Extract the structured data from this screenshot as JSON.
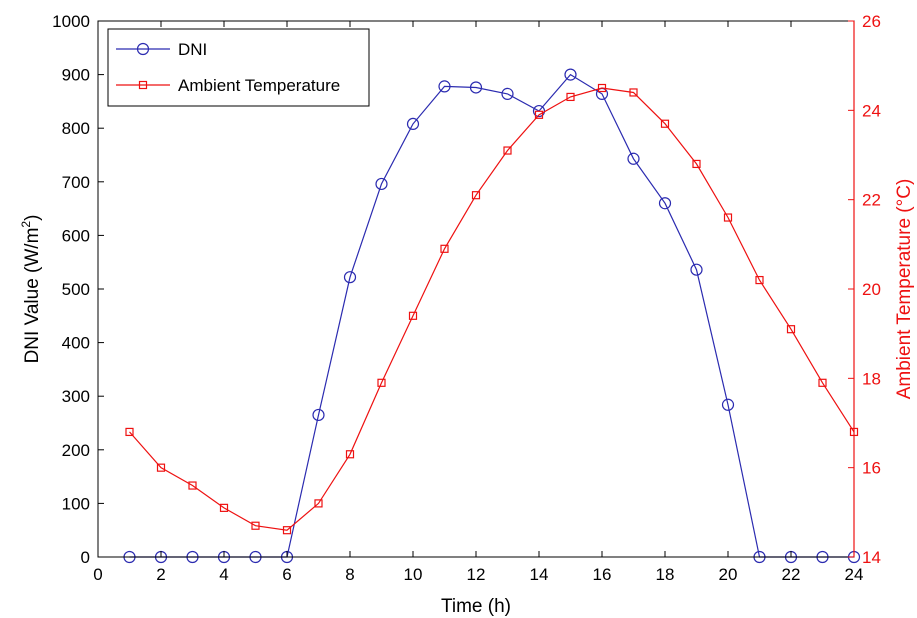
{
  "chart_data": {
    "type": "line",
    "xlabel": "Time (h)",
    "ylabel_left": {
      "main": "DNI Value (W/m",
      "sup": "2",
      "close": ")"
    },
    "ylabel_right": "Ambient Temperature (°C)",
    "xlim": [
      0,
      24
    ],
    "ylim_left": [
      0,
      1000
    ],
    "ylim_right": [
      14,
      26
    ],
    "x_ticks": [
      0,
      2,
      4,
      6,
      8,
      10,
      12,
      14,
      16,
      18,
      20,
      22,
      24
    ],
    "y_ticks_left": [
      0,
      100,
      200,
      300,
      400,
      500,
      600,
      700,
      800,
      900,
      1000
    ],
    "y_ticks_right": [
      14,
      16,
      18,
      20,
      22,
      24,
      26
    ],
    "grid": false,
    "legend_position": "top-left",
    "x": [
      1,
      2,
      3,
      4,
      5,
      6,
      7,
      8,
      9,
      10,
      11,
      12,
      13,
      14,
      15,
      16,
      17,
      18,
      19,
      20,
      21,
      22,
      23,
      24
    ],
    "series": [
      {
        "name": "DNI",
        "axis": "left",
        "color": "#2b2bb0",
        "marker": "circle",
        "values": [
          0,
          0,
          0,
          0,
          0,
          0,
          265,
          522,
          696,
          808,
          878,
          876,
          864,
          832,
          900,
          864,
          743,
          660,
          536,
          284,
          0,
          0,
          0,
          0
        ]
      },
      {
        "name": "Ambient Temperature",
        "axis": "right",
        "color": "#ee1111",
        "marker": "square",
        "values": [
          16.8,
          16.0,
          15.6,
          15.1,
          14.7,
          14.6,
          15.2,
          16.3,
          17.9,
          19.4,
          20.9,
          22.1,
          23.1,
          23.9,
          24.3,
          24.5,
          24.4,
          23.7,
          22.8,
          21.6,
          20.2,
          19.1,
          17.9,
          16.8
        ]
      }
    ]
  }
}
